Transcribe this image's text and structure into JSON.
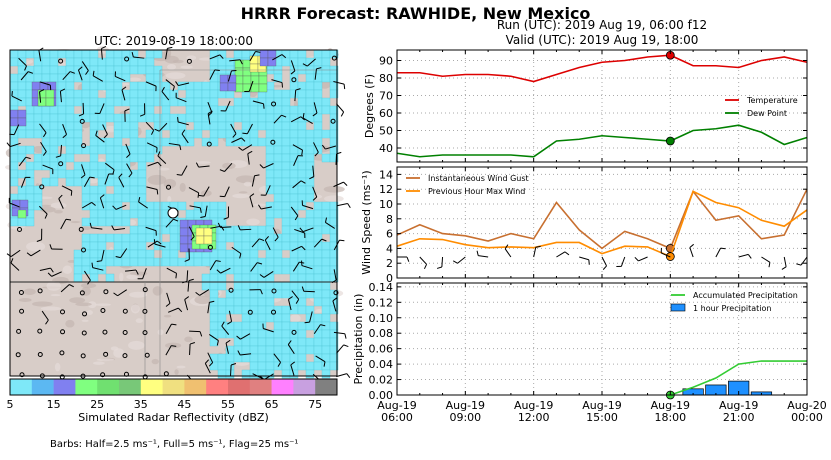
{
  "figure": {
    "title": "HRRR Forecast: RAWHIDE, New Mexico",
    "map_title": "UTC: 2019-08-19 18:00:00",
    "run_line1": "Run (UTC): 2019 Aug 19, 06:00 f12",
    "run_line2": "Valid (UTC): 2019 Aug 19, 18:00",
    "colorbar_label": "Simulated Radar Reflectivity (dBZ)",
    "barbs_note": "Barbs: Half=2.5 ms⁻¹, Full=5 ms⁻¹, Flag=25 ms⁻¹"
  },
  "colorbar": {
    "ticks": [
      "5",
      "15",
      "25",
      "35",
      "45",
      "55",
      "65",
      "75"
    ],
    "colors": [
      "#7ee8f8",
      "#5cb8f2",
      "#8080f0",
      "#80ff80",
      "#70e070",
      "#78c878",
      "#ffff80",
      "#f0e080",
      "#f0c070",
      "#ff8080",
      "#e07070",
      "#e08080",
      "#ff80ff",
      "#c8a0e0",
      "#808080"
    ]
  },
  "chart_data": [
    {
      "type": "line",
      "x": [
        "06:00",
        "07:00",
        "08:00",
        "09:00",
        "10:00",
        "11:00",
        "12:00",
        "13:00",
        "14:00",
        "15:00",
        "16:00",
        "17:00",
        "18:00",
        "19:00",
        "20:00",
        "21:00",
        "22:00",
        "23:00",
        "00:00"
      ],
      "series": [
        {
          "name": "Temperature",
          "color": "#dd0000",
          "values": [
            83,
            83,
            81,
            82,
            82,
            81,
            78,
            82,
            86,
            89,
            90,
            92,
            93,
            87,
            87,
            86,
            90,
            92,
            89
          ]
        },
        {
          "name": "Dew Point",
          "color": "#008000",
          "values": [
            37,
            35,
            36,
            36,
            36,
            36,
            35,
            44,
            45,
            47,
            46,
            45,
            44,
            50,
            51,
            53,
            49,
            42,
            46
          ]
        }
      ],
      "ylabel": "Degrees (F)",
      "yticks": [
        40,
        50,
        60,
        70,
        80,
        90
      ],
      "ylim": [
        32,
        96
      ],
      "highlight_x": "18:00",
      "legend": "right",
      "grid": true
    },
    {
      "type": "line",
      "x": [
        "06:00",
        "07:00",
        "08:00",
        "09:00",
        "10:00",
        "11:00",
        "12:00",
        "13:00",
        "14:00",
        "15:00",
        "16:00",
        "17:00",
        "18:00",
        "19:00",
        "20:00",
        "21:00",
        "22:00",
        "23:00",
        "00:00"
      ],
      "series": [
        {
          "name": "Instantaneous Wind Gust",
          "color": "#c87030",
          "values": [
            5.8,
            7.2,
            6.0,
            5.7,
            5.0,
            6.0,
            5.3,
            10.2,
            6.5,
            4.0,
            6.3,
            5.3,
            4.0,
            11.7,
            7.8,
            8.4,
            5.3,
            5.8,
            12.0
          ]
        },
        {
          "name": "Previous Hour Max Wind",
          "color": "#ff8c00",
          "values": [
            4.3,
            5.3,
            5.2,
            4.5,
            4.1,
            4.2,
            4.1,
            4.8,
            4.8,
            3.3,
            4.3,
            4.2,
            2.9,
            11.7,
            10.2,
            9.5,
            7.8,
            7.0,
            9.2
          ]
        }
      ],
      "ylabel": "Wind Speed (ms⁻¹)",
      "yticks": [
        0,
        2,
        4,
        6,
        8,
        10,
        12,
        14
      ],
      "ylim": [
        0,
        15
      ],
      "highlight_x": "18:00",
      "legend": "top-left",
      "grid": true
    },
    {
      "type": "bar",
      "x": [
        "06:00",
        "07:00",
        "08:00",
        "09:00",
        "10:00",
        "11:00",
        "12:00",
        "13:00",
        "14:00",
        "15:00",
        "16:00",
        "17:00",
        "18:00",
        "19:00",
        "20:00",
        "21:00",
        "22:00",
        "23:00",
        "00:00"
      ],
      "series": [
        {
          "name": "Accumulated Precipitation",
          "color": "#33cc33",
          "values": [
            0,
            0,
            0,
            0,
            0,
            0,
            0,
            0,
            0,
            0,
            0,
            0,
            0,
            0.01,
            0.022,
            0.04,
            0.044,
            0.044,
            0.044
          ]
        },
        {
          "name": "1 hour Precipitation",
          "color": "#1e90ff",
          "values": [
            0,
            0,
            0,
            0,
            0,
            0,
            0,
            0,
            0,
            0,
            0,
            0,
            0,
            0.008,
            0.013,
            0.018,
            0.004,
            0,
            0
          ]
        }
      ],
      "ylabel": "Precipitation (in)",
      "yticks": [
        "0.00",
        "0.02",
        "0.04",
        "0.06",
        "0.08",
        "0.10",
        "0.12",
        "0.14"
      ],
      "ylim": [
        0,
        0.145
      ],
      "highlight_x": "18:00",
      "legend": "top-right",
      "grid": true
    }
  ],
  "x_axis": {
    "tick_top": [
      "Aug-19",
      "Aug-19",
      "Aug-19",
      "Aug-19",
      "Aug-19",
      "Aug-19",
      "Aug-20"
    ],
    "tick_bottom": [
      "06:00",
      "09:00",
      "12:00",
      "15:00",
      "18:00",
      "21:00",
      "00:00"
    ]
  }
}
